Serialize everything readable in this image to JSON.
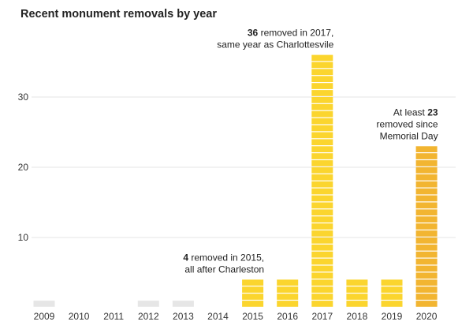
{
  "chart_data": {
    "type": "bar",
    "title": "Recent monument removals by year",
    "xlabel": "",
    "ylabel": "",
    "categories": [
      "2009",
      "2010",
      "2011",
      "2012",
      "2013",
      "2014",
      "2015",
      "2016",
      "2017",
      "2018",
      "2019",
      "2020"
    ],
    "values": [
      1,
      0,
      0,
      1,
      1,
      0,
      4,
      4,
      36,
      4,
      4,
      23
    ],
    "ylim": [
      0,
      36
    ],
    "yticks": [
      10,
      20,
      30
    ],
    "grid": "horizontal",
    "bar_style": "stacked unit blocks, one block per removal",
    "colors": {
      "pre_2015": "#e6e6e6",
      "highlight": "#fbd52e",
      "year_2020": "#f2b531"
    },
    "annotations": [
      {
        "category": "2015",
        "lines": [
          [
            "",
            "4",
            " removed in 2015,"
          ],
          [
            "",
            "",
            "all after Charleston"
          ]
        ]
      },
      {
        "category": "2017",
        "lines": [
          [
            "",
            "36",
            " removed in 2017,"
          ],
          [
            "",
            "",
            "same year as Charlottesvile"
          ]
        ]
      },
      {
        "category": "2020",
        "lines": [
          [
            "At least ",
            "23",
            ""
          ],
          [
            "",
            "",
            "removed since"
          ],
          [
            "",
            "",
            "Memorial Day"
          ]
        ]
      }
    ]
  }
}
